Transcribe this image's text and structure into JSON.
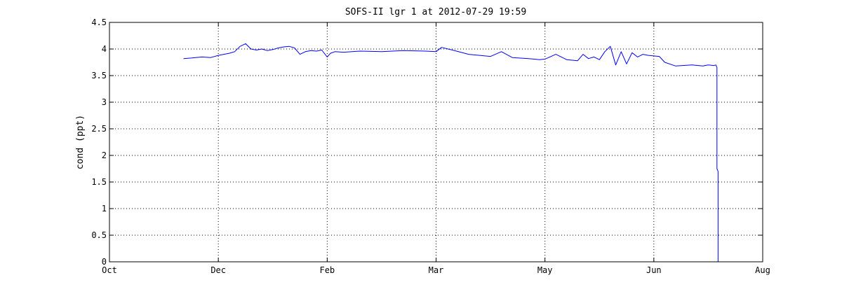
{
  "chart_data": {
    "type": "line",
    "title": "SOFS-II lgr 1 at 2012-07-29 19:59",
    "xlabel": "",
    "ylabel": "cond (ppt)",
    "x_ticks": [
      "Oct",
      "Dec",
      "Feb",
      "Mar",
      "May",
      "Jun",
      "Aug"
    ],
    "y_ticks": [
      "0",
      "0.5",
      "1",
      "1.5",
      "2",
      "2.5",
      "3",
      "3.5",
      "4",
      "4.5"
    ],
    "ylim": [
      0,
      4.5
    ],
    "grid": true,
    "line_color": "#0000ff",
    "series": [
      {
        "x": [
          0.68,
          0.75,
          0.85,
          0.93,
          1.0,
          1.05,
          1.1,
          1.15,
          1.2,
          1.25,
          1.3,
          1.35,
          1.4,
          1.45,
          1.5,
          1.55,
          1.6,
          1.65,
          1.7,
          1.75,
          1.8,
          1.85,
          1.9,
          1.95,
          2.0,
          2.03,
          2.07,
          2.15,
          2.3,
          2.5,
          2.7,
          2.9,
          3.0,
          3.05,
          3.15,
          3.3,
          3.5,
          3.6,
          3.7,
          3.85,
          3.95,
          4.0,
          4.1,
          4.2,
          4.3,
          4.35,
          4.4,
          4.45,
          4.5,
          4.55,
          4.6,
          4.65,
          4.7,
          4.75,
          4.8,
          4.85,
          4.9,
          4.95,
          5.0,
          5.05,
          5.1,
          5.2,
          5.35,
          5.45,
          5.5,
          5.55,
          5.57,
          5.58,
          5.58,
          5.59,
          5.59
        ],
        "y": [
          3.82,
          3.83,
          3.85,
          3.84,
          3.88,
          3.9,
          3.92,
          3.95,
          4.05,
          4.1,
          4.0,
          3.98,
          4.0,
          3.97,
          3.99,
          4.02,
          4.04,
          4.05,
          4.02,
          3.9,
          3.95,
          3.97,
          3.96,
          3.98,
          3.85,
          3.92,
          3.95,
          3.94,
          3.96,
          3.95,
          3.97,
          3.96,
          3.95,
          4.03,
          3.98,
          3.9,
          3.86,
          3.95,
          3.84,
          3.82,
          3.8,
          3.81,
          3.9,
          3.8,
          3.78,
          3.9,
          3.82,
          3.85,
          3.8,
          3.95,
          4.05,
          3.7,
          3.95,
          3.72,
          3.93,
          3.85,
          3.9,
          3.88,
          3.87,
          3.86,
          3.75,
          3.68,
          3.7,
          3.68,
          3.7,
          3.69,
          3.7,
          3.65,
          1.75,
          1.7,
          0
        ]
      }
    ]
  }
}
